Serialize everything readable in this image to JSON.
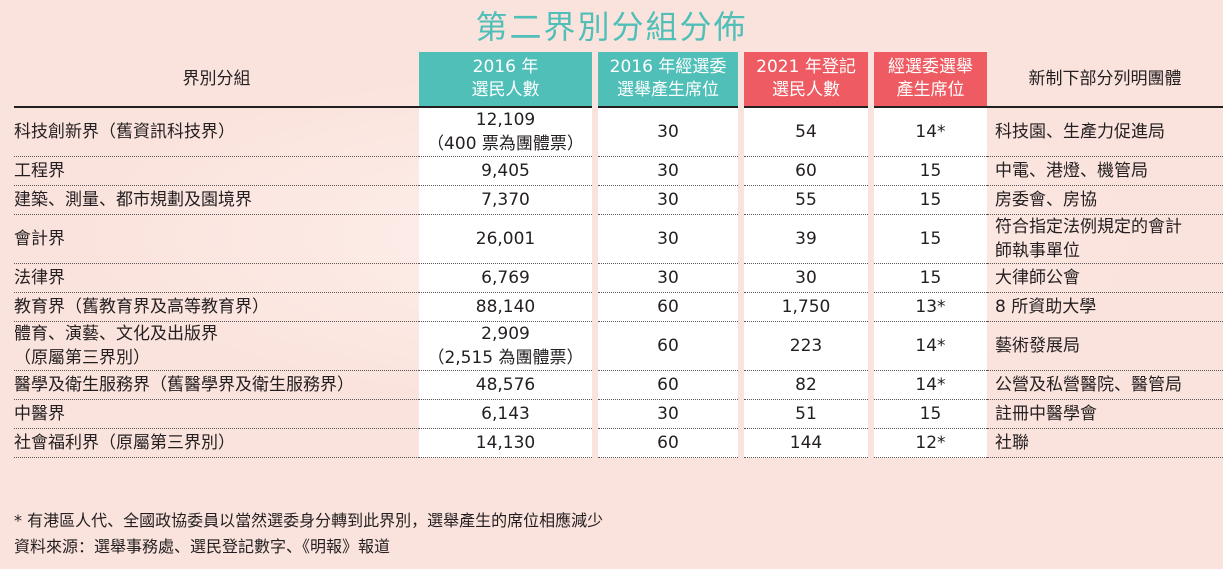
{
  "title": "第二界別分組分佈",
  "headers": {
    "sector": "界別分組",
    "voters_2016": [
      "2016 年",
      "選民人數"
    ],
    "seats_2016": [
      "2016 年經選委",
      "選舉產生席位"
    ],
    "voters_2021": [
      "2021 年登記",
      "選民人數"
    ],
    "seats_new": [
      "經選委選舉",
      "產生席位"
    ],
    "subsectors": "新制下部分列明團體"
  },
  "rows": [
    {
      "sector": [
        "科技創新界（舊資訊科技界）"
      ],
      "voters_2016": [
        "12,109",
        "（400 票為團體票）"
      ],
      "seats_2016": "30",
      "voters_2021": "54",
      "seats_new": "14*",
      "subsectors": [
        "科技園、生產力促進局"
      ]
    },
    {
      "sector": [
        "工程界"
      ],
      "voters_2016": [
        "9,405"
      ],
      "seats_2016": "30",
      "voters_2021": "60",
      "seats_new": "15",
      "subsectors": [
        "中電、港燈、機管局"
      ]
    },
    {
      "sector": [
        "建築、測量、都市規劃及園境界"
      ],
      "voters_2016": [
        "7,370"
      ],
      "seats_2016": "30",
      "voters_2021": "55",
      "seats_new": "15",
      "subsectors": [
        "房委會、房協"
      ]
    },
    {
      "sector": [
        "會計界"
      ],
      "voters_2016": [
        "26,001"
      ],
      "seats_2016": "30",
      "voters_2021": "39",
      "seats_new": "15",
      "subsectors": [
        "符合指定法例規定的會計",
        "師執事單位"
      ]
    },
    {
      "sector": [
        "法律界"
      ],
      "voters_2016": [
        "6,769"
      ],
      "seats_2016": "30",
      "voters_2021": "30",
      "seats_new": "15",
      "subsectors": [
        "大律師公會"
      ]
    },
    {
      "sector": [
        "教育界（舊教育界及高等教育界）"
      ],
      "voters_2016": [
        "88,140"
      ],
      "seats_2016": "60",
      "voters_2021": "1,750",
      "seats_new": "13*",
      "subsectors": [
        "8 所資助大學"
      ]
    },
    {
      "sector": [
        "體育、演藝、文化及出版界",
        "（原屬第三界別）"
      ],
      "voters_2016": [
        "2,909",
        "（2,515 為團體票）"
      ],
      "seats_2016": "60",
      "voters_2021": "223",
      "seats_new": "14*",
      "subsectors": [
        "藝術發展局"
      ]
    },
    {
      "sector": [
        "醫學及衛生服務界（舊醫學界及衛生服務界）"
      ],
      "voters_2016": [
        "48,576"
      ],
      "seats_2016": "60",
      "voters_2021": "82",
      "seats_new": "14*",
      "subsectors": [
        "公營及私營醫院、醫管局"
      ]
    },
    {
      "sector": [
        "中醫界"
      ],
      "voters_2016": [
        "6,143"
      ],
      "seats_2016": "30",
      "voters_2021": "51",
      "seats_new": "15",
      "subsectors": [
        "註冊中醫學會"
      ]
    },
    {
      "sector": [
        "社會福利界（原屬第三界別）"
      ],
      "voters_2016": [
        "14,130"
      ],
      "seats_2016": "60",
      "voters_2021": "144",
      "seats_new": "12*",
      "subsectors": [
        "社聯"
      ]
    }
  ],
  "footnote": "* 有港區人代、全國政協委員以當然選委身分轉到此界別，選舉產生的席位相應減少",
  "source": "資料來源：選舉事務處、選民登記數字、《明報》報道",
  "colors": {
    "teal": "#4fbfb8",
    "red": "#ee5b62",
    "background": "#fbe3dd"
  }
}
